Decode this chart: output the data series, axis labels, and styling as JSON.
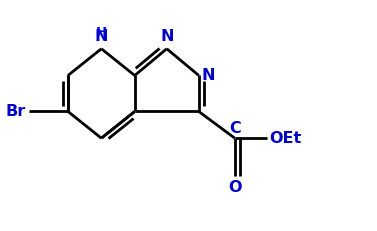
{
  "background_color": "#ffffff",
  "line_color": "#000000",
  "text_color": "#0000cc",
  "line_width": 2.0,
  "figsize": [
    3.77,
    2.31
  ],
  "dpi": 100,
  "xlim": [
    0.0,
    1.4
  ],
  "ylim": [
    0.1,
    0.95
  ]
}
